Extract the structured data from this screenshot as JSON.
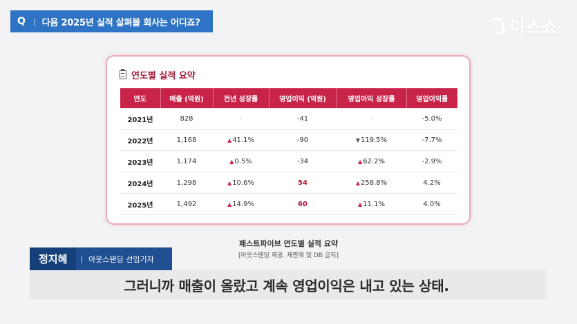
{
  "question": {
    "letter": "Q",
    "separator": "|",
    "text": "다음 2025년 실적 살펴볼 회사는 어디죠?"
  },
  "logo": {
    "text": "아스쇼"
  },
  "card": {
    "title": "연도별 실적 요약",
    "headers": [
      "연도",
      "매출 (억원)",
      "전년 성장률",
      "영업이익 (억원)",
      "영업이익 성장률",
      "영업이익률"
    ],
    "rows": [
      {
        "year": "2021년",
        "sales": "828",
        "sales_growth": "-",
        "sales_dir": "",
        "op": "-41",
        "op_growth": "-",
        "op_dir": "",
        "margin": "-5.0%"
      },
      {
        "year": "2022년",
        "sales": "1,168",
        "sales_growth": "41.1%",
        "sales_dir": "up",
        "op": "-90",
        "op_growth": "119.5%",
        "op_dir": "down",
        "margin": "-7.7%"
      },
      {
        "year": "2023년",
        "sales": "1,174",
        "sales_growth": "0.5%",
        "sales_dir": "up",
        "op": "-34",
        "op_growth": "62.2%",
        "op_dir": "up",
        "margin": "-2.9%"
      },
      {
        "year": "2024년",
        "sales": "1,298",
        "sales_growth": "10.6%",
        "sales_dir": "up",
        "op": "54",
        "op_growth": "258.8%",
        "op_dir": "up",
        "margin": "4.2%"
      },
      {
        "year": "2025년",
        "sales": "1,492",
        "sales_growth": "14.9%",
        "sales_dir": "up",
        "op": "60",
        "op_growth": "11.1%",
        "op_dir": "up",
        "margin": "4.0%"
      }
    ]
  },
  "caption": {
    "title": "패스트파이브 연도별 실적 요약",
    "source": "[아웃스탠딩 제공. 재판매 및 DB 금지]"
  },
  "reporter": {
    "name": "정지혜",
    "separator": "|",
    "role": "아웃스탠딩 선임기자"
  },
  "subtitle": "그러니까 매출이 올랐고 계속 영업이익은 내고 있는 상태.",
  "colors": {
    "accent": "#c8244a",
    "question_bg": "#2f74c4",
    "reporter_bg": "#16407a"
  }
}
